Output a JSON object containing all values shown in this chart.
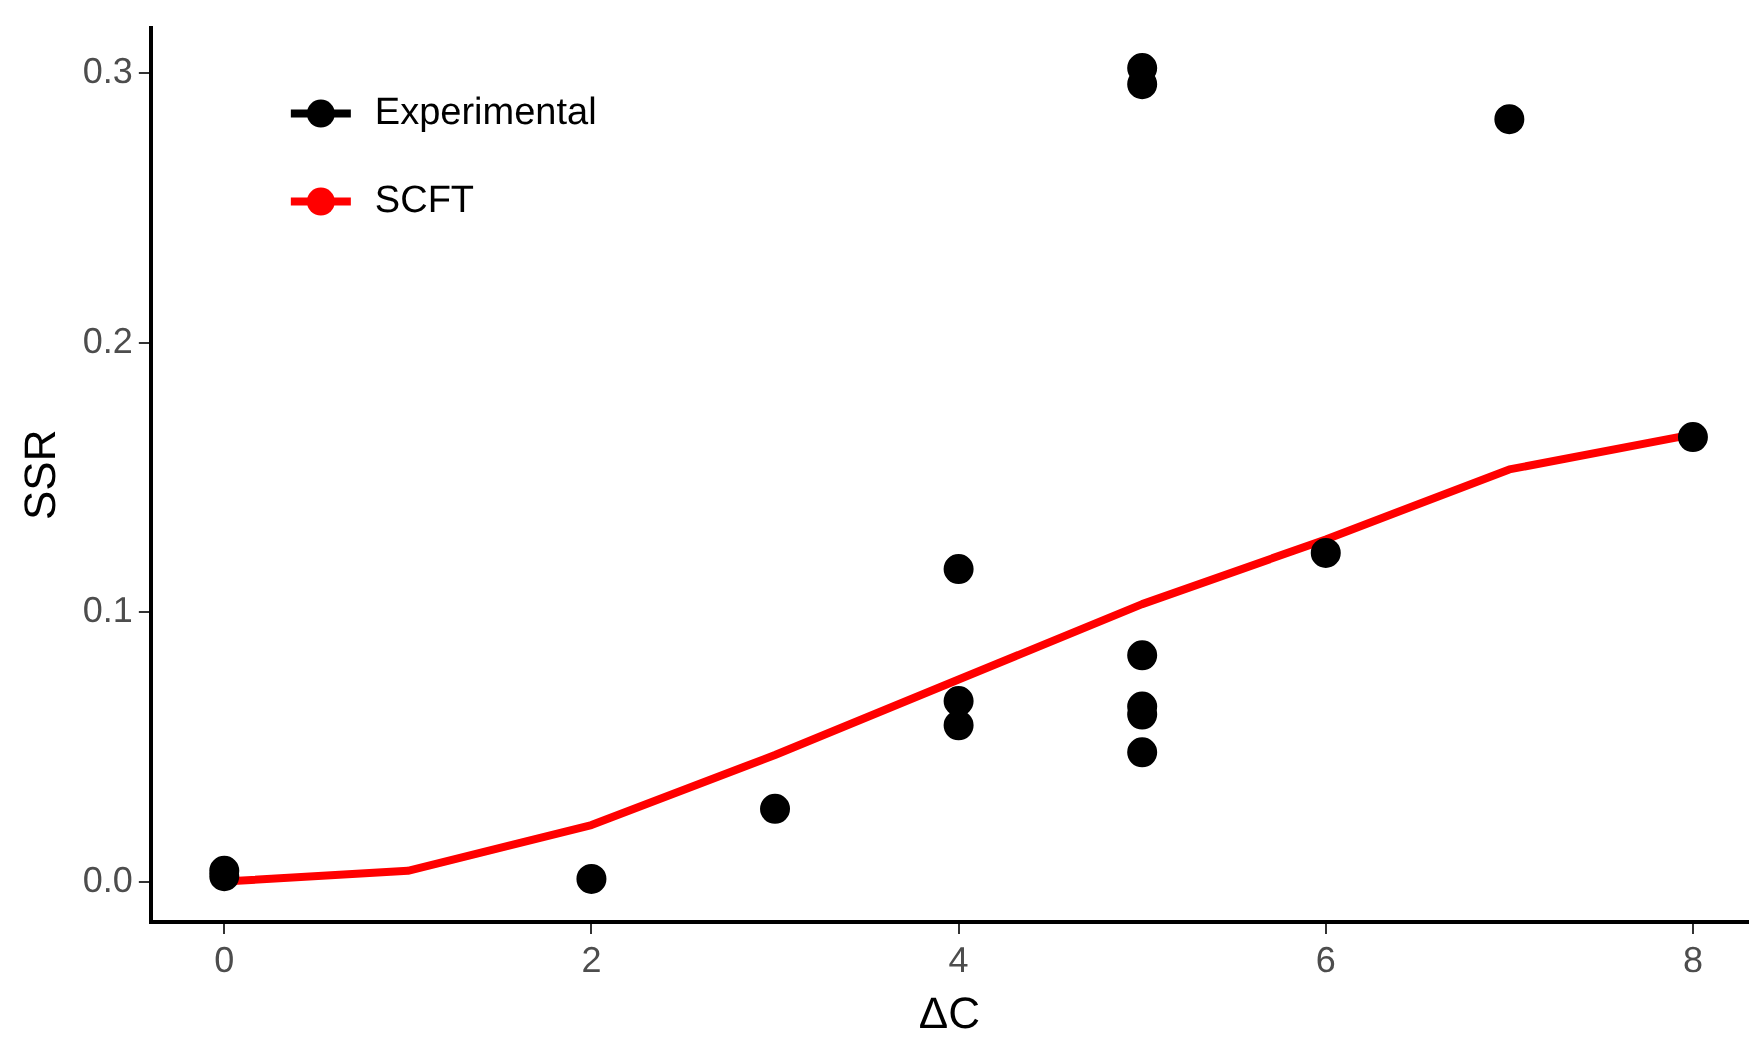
{
  "chart_data": {
    "type": "scatter",
    "xlabel": "ΔC",
    "ylabel": "SSR",
    "xlim": [
      -0.4,
      8.3
    ],
    "xticks": [
      0,
      2,
      4,
      6,
      8
    ],
    "ylim": [
      -0.015,
      0.317
    ],
    "yticks": [
      {
        "value": 0,
        "label": "0.0"
      },
      {
        "value": 0.1,
        "label": "0.1"
      },
      {
        "value": 0.2,
        "label": "0.2"
      },
      {
        "value": 0.3,
        "label": "0.3"
      }
    ],
    "grid": false,
    "legend": "top left",
    "marker": "circle",
    "series": [
      {
        "name": "Experimental",
        "color": "#000000",
        "x": [
          0,
          0,
          2,
          3,
          4,
          4,
          4,
          5,
          5,
          5,
          5,
          5,
          5,
          6,
          7,
          8
        ],
        "values": [
          0.004,
          0.002,
          0.001,
          0.027,
          0.116,
          0.067,
          0.058,
          0.302,
          0.296,
          0.084,
          0.065,
          0.062,
          0.048,
          0.122,
          0.283,
          0.165
        ]
      },
      {
        "name": "SCFT",
        "color": "#ff0000",
        "type": "line",
        "marker": "none",
        "line_style": "solid",
        "x": [
          0,
          1,
          2,
          3,
          4,
          5,
          6,
          7,
          8
        ],
        "values": [
          0,
          0.004,
          0.021,
          0.047,
          0.075,
          0.103,
          0.127,
          0.153,
          0.166
        ]
      }
    ]
  }
}
